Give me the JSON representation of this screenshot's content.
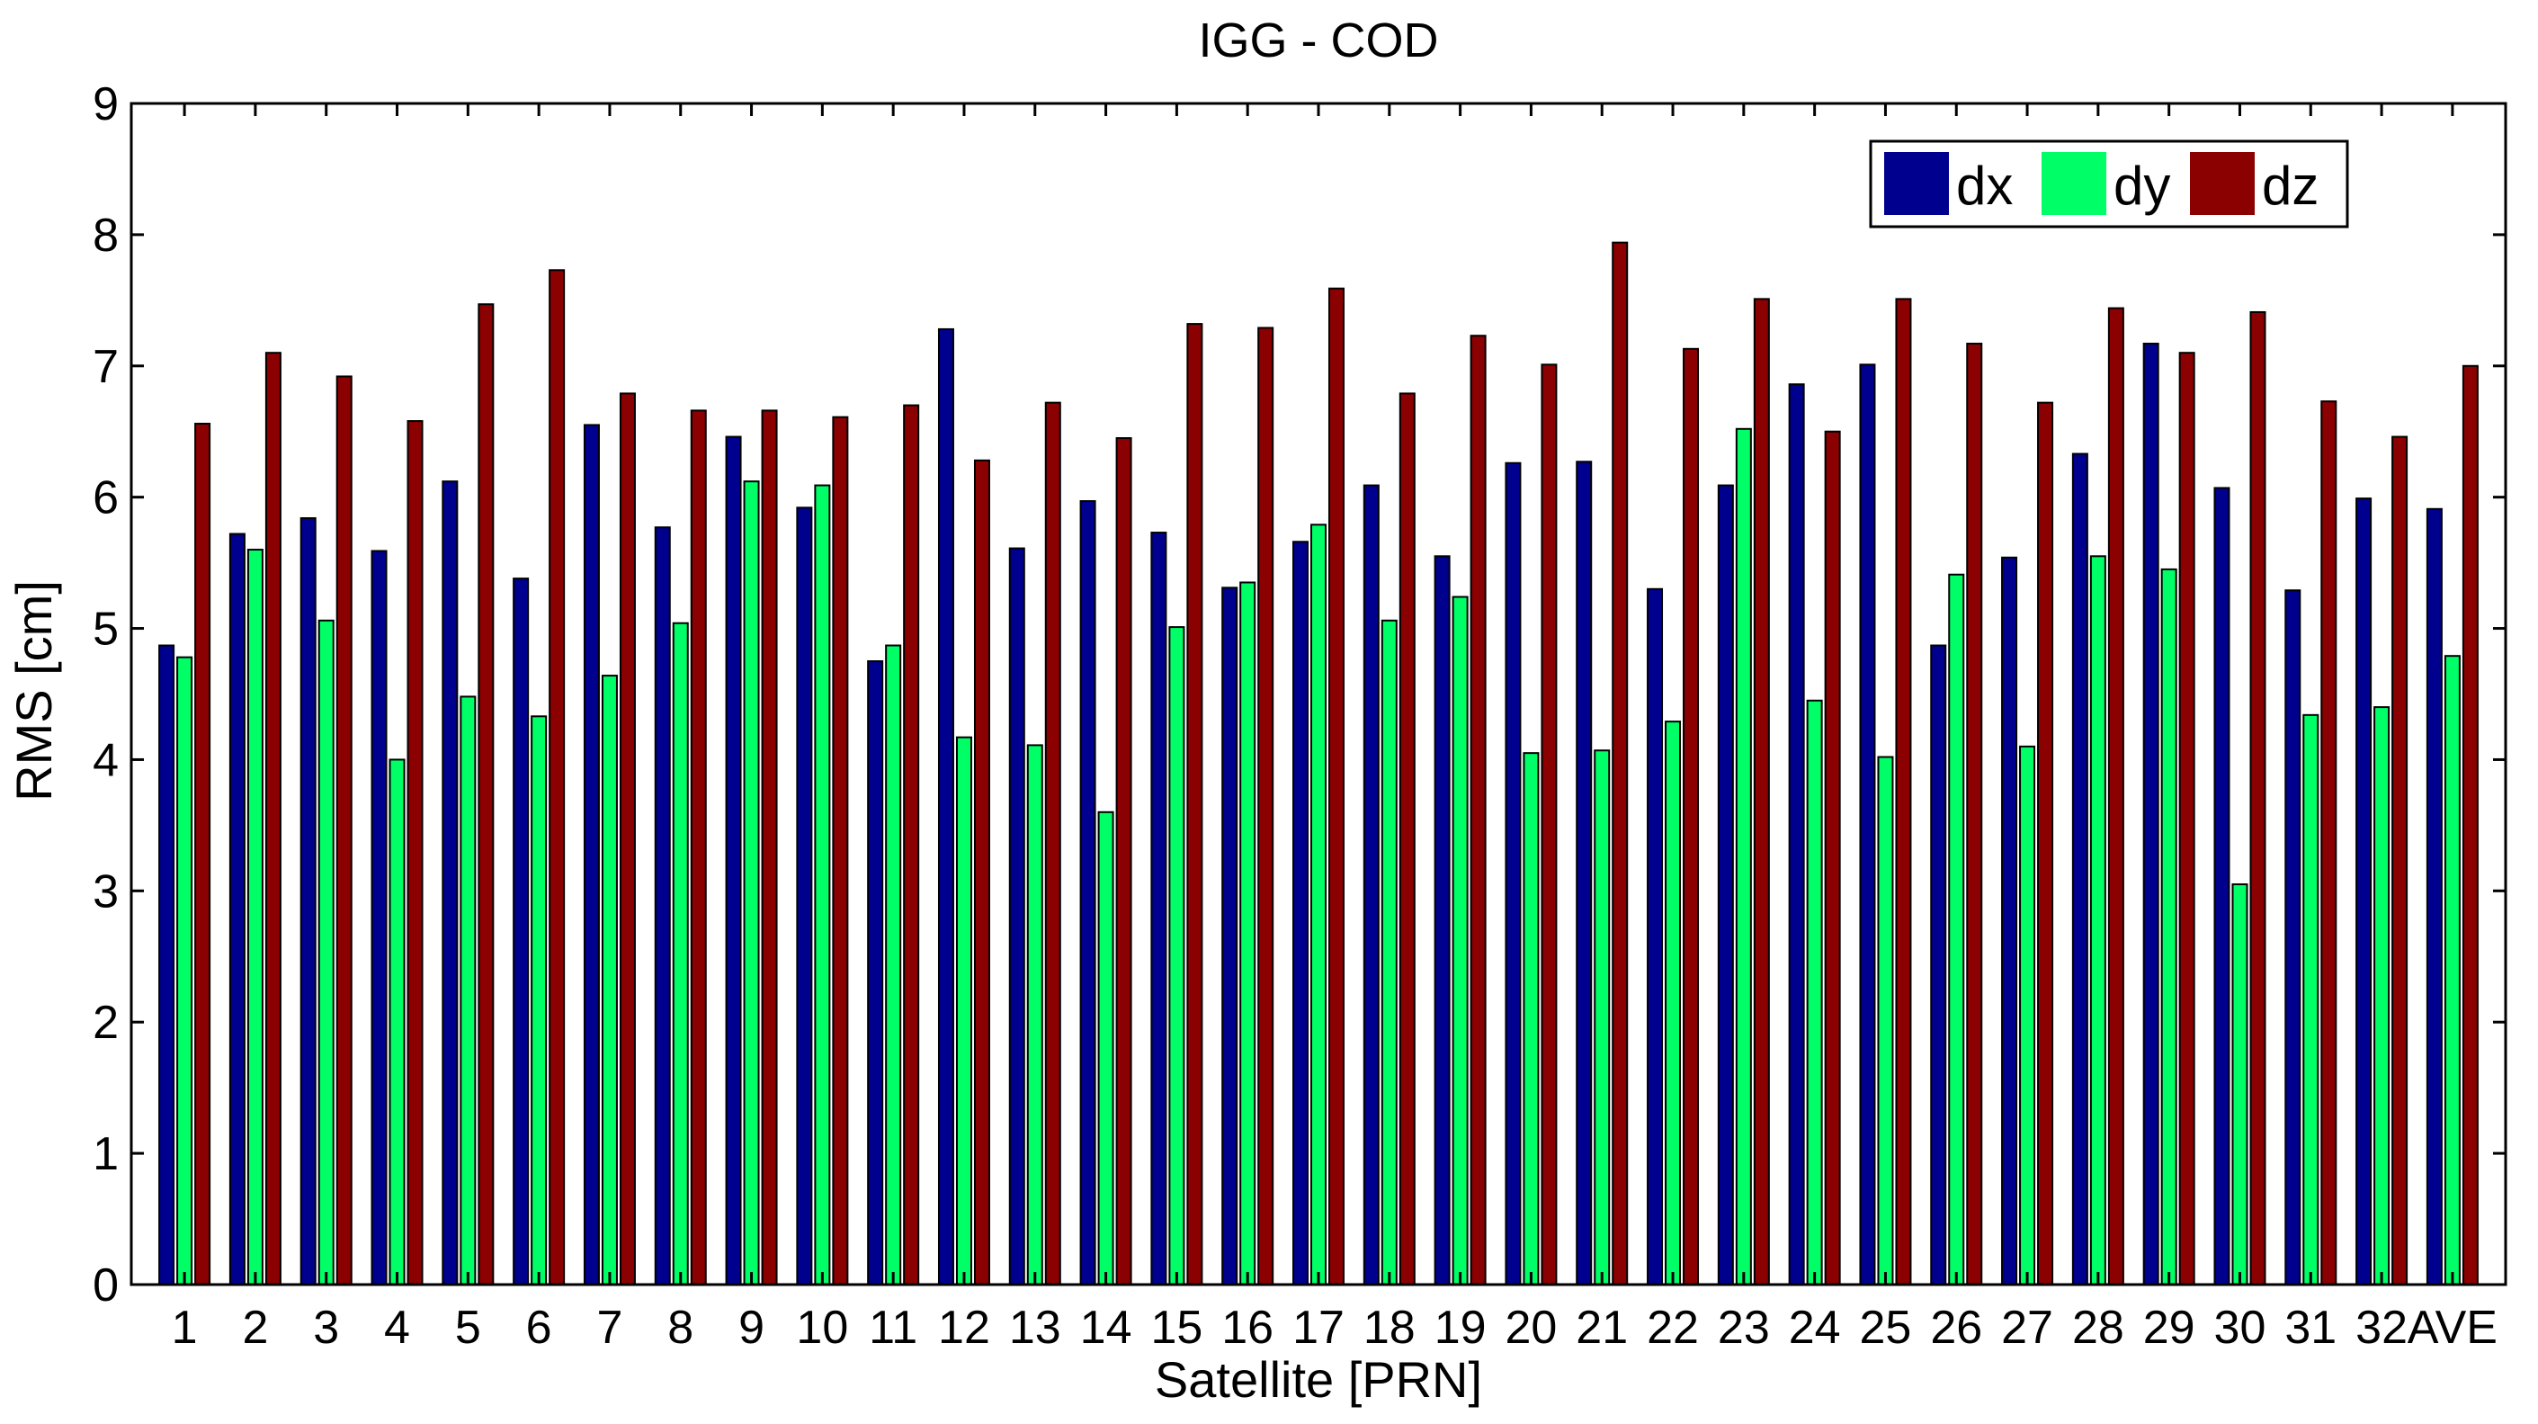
{
  "chart_data": {
    "type": "bar",
    "title": "IGG - COD",
    "xlabel": "Satellite [PRN]",
    "ylabel": "RMS [cm]",
    "ylim": [
      0,
      9
    ],
    "yticks": [
      0,
      1,
      2,
      3,
      4,
      5,
      6,
      7,
      8,
      9
    ],
    "grid": false,
    "legend_position": "top-right",
    "categories": [
      "1",
      "2",
      "3",
      "4",
      "5",
      "6",
      "7",
      "8",
      "9",
      "10",
      "11",
      "12",
      "13",
      "14",
      "15",
      "16",
      "17",
      "18",
      "19",
      "20",
      "21",
      "22",
      "23",
      "24",
      "25",
      "26",
      "27",
      "28",
      "29",
      "30",
      "31",
      "32",
      "AVE"
    ],
    "series": [
      {
        "name": "dx",
        "color": "#00008f",
        "values": [
          4.87,
          5.72,
          5.84,
          5.59,
          6.12,
          5.38,
          6.55,
          5.77,
          6.46,
          5.92,
          4.75,
          7.28,
          5.61,
          5.97,
          5.73,
          5.31,
          5.66,
          6.09,
          5.55,
          6.26,
          6.27,
          5.3,
          6.09,
          6.86,
          7.01,
          4.87,
          5.54,
          6.33,
          7.17,
          6.07,
          5.29,
          5.99,
          5.91
        ]
      },
      {
        "name": "dy",
        "color": "#00ff66",
        "values": [
          4.78,
          5.6,
          5.06,
          4.0,
          4.48,
          4.33,
          4.64,
          5.04,
          6.12,
          6.09,
          4.87,
          4.17,
          4.11,
          3.6,
          5.01,
          5.35,
          5.79,
          5.06,
          5.24,
          4.05,
          4.07,
          4.29,
          6.52,
          4.45,
          4.02,
          5.41,
          4.1,
          5.55,
          5.45,
          3.05,
          4.34,
          4.4,
          4.79
        ]
      },
      {
        "name": "dz",
        "color": "#8b0000",
        "values": [
          6.56,
          7.1,
          6.92,
          6.58,
          7.47,
          7.73,
          6.79,
          6.66,
          6.66,
          6.61,
          6.7,
          6.28,
          6.72,
          6.45,
          7.32,
          7.29,
          7.59,
          6.79,
          7.23,
          7.01,
          7.94,
          7.13,
          7.51,
          6.5,
          7.51,
          7.17,
          6.72,
          7.44,
          7.1,
          7.41,
          6.73,
          6.46,
          7.0
        ]
      }
    ]
  }
}
